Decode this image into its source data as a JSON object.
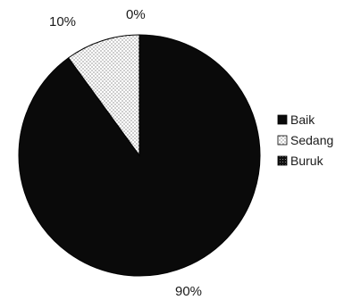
{
  "chart_data": {
    "type": "pie",
    "categories": [
      "Baik",
      "Sedang",
      "Buruk"
    ],
    "values": [
      90,
      10,
      0
    ],
    "value_labels": [
      "90%",
      "10%",
      "0%"
    ],
    "start": "12 o'clock, clockwise",
    "title": "",
    "legend": {
      "placement": "right",
      "items": [
        {
          "label": "Baik",
          "fill": "solid-black"
        },
        {
          "label": "Sedang",
          "fill": "white-dotted"
        },
        {
          "label": "Buruk",
          "fill": "black-dotted"
        }
      ]
    },
    "colors": {
      "baik": "#0a0a0a",
      "sedang_bg": "#ffffff",
      "sedang_dots": "#555555",
      "buruk": "#111111",
      "stroke": "#000000"
    }
  }
}
